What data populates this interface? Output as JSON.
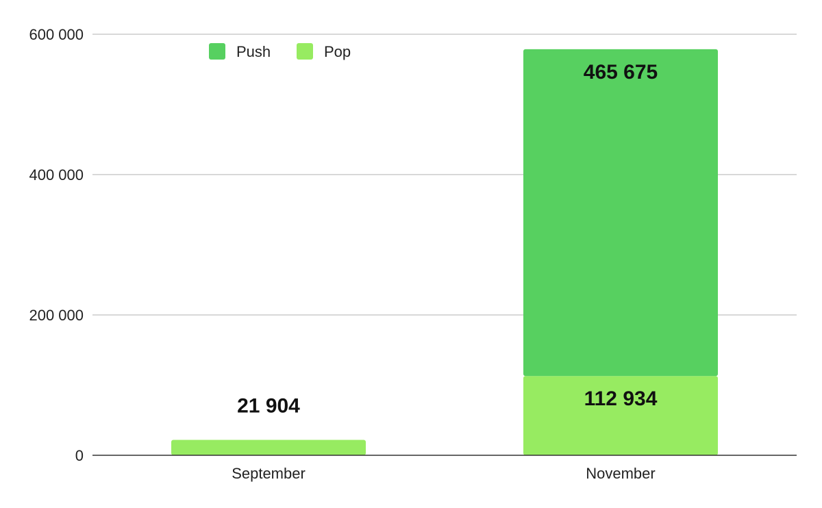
{
  "chart_data": {
    "type": "bar",
    "stacked": true,
    "categories": [
      "September",
      "November"
    ],
    "series": [
      {
        "name": "Pop",
        "values": [
          21904,
          112934
        ],
        "color": "#97eb61"
      },
      {
        "name": "Push",
        "values": [
          0,
          465675
        ],
        "color": "#57d060"
      }
    ],
    "data_labels": {
      "September": [
        "21 904"
      ],
      "November": [
        "112 934",
        "465 675"
      ]
    },
    "y_ticks": [
      0,
      200000,
      400000,
      600000
    ],
    "y_tick_labels": [
      "0",
      "200 000",
      "400 000",
      "600 000"
    ],
    "ylim": [
      0,
      600000
    ],
    "grid": true,
    "legend": {
      "position": "top-left",
      "entries": [
        "Push",
        "Pop"
      ]
    },
    "title": "",
    "xlabel": "",
    "ylabel": ""
  }
}
